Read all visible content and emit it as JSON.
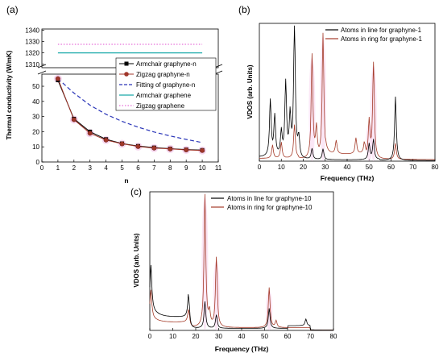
{
  "colors": {
    "armchair": "#000000",
    "zigzag": "#a0362a",
    "fit": "#2a35b8",
    "armchair_graphene": "#1aa9a9",
    "zigzag_graphene": "#e14bcf",
    "line_series": "#000000",
    "ring_series": "#a53c2a"
  },
  "chart_data": [
    {
      "panel": "(a)",
      "type": "line",
      "xlabel": "n",
      "ylabel": "Thermal conductivity (W/mK)",
      "xlim": [
        0,
        11
      ],
      "x_ticks": [
        "0",
        "1",
        "2",
        "3",
        "4",
        "5",
        "6",
        "7",
        "8",
        "9",
        "10",
        "11"
      ],
      "lower_ylim": [
        0,
        58
      ],
      "lower_y_ticks": [
        "0",
        "10",
        "20",
        "30",
        "40",
        "50"
      ],
      "upper_ylim": [
        1307,
        1341
      ],
      "upper_y_ticks": [
        "1310",
        "1320",
        "1330",
        "1340"
      ],
      "x": [
        1,
        2,
        3,
        4,
        5,
        6,
        7,
        8,
        9,
        10
      ],
      "series": [
        {
          "name": "Armchair graphyne-n",
          "values": [
            54,
            28.5,
            20,
            15,
            12.2,
            10.5,
            9.5,
            8.8,
            8.2,
            7.8
          ]
        },
        {
          "name": "Zigzag graphyne-n",
          "values": [
            55,
            28,
            19,
            14.5,
            12,
            10.2,
            9.2,
            8.6,
            8.0,
            7.6
          ]
        },
        {
          "name": "Fitting of graphyne-n",
          "values": [
            55,
            45.5,
            37.5,
            31.5,
            26.8,
            23,
            19.8,
            17.2,
            14.9,
            12.8
          ]
        },
        {
          "name": "Armchair graphene",
          "constant": 1320
        },
        {
          "name": "Zigzag graphene",
          "constant": 1327.5
        }
      ],
      "legend": "right"
    },
    {
      "panel": "(b)",
      "type": "line",
      "xlabel": "Frequency (THz)",
      "ylabel": "VDOS (arb. Units)",
      "xlim": [
        0,
        80
      ],
      "x_ticks": [
        "0",
        "10",
        "20",
        "30",
        "40",
        "50",
        "60",
        "70",
        "80"
      ],
      "series": [
        {
          "name": "Atoms in line for graphyne-1",
          "peaks": [
            [
              5,
              0.42
            ],
            [
              7,
              0.3
            ],
            [
              10,
              0.18
            ],
            [
              12,
              0.55
            ],
            [
              14,
              0.3
            ],
            [
              16,
              1.0
            ],
            [
              18,
              0.15
            ],
            [
              24,
              0.08
            ],
            [
              29,
              0.08
            ],
            [
              50,
              0.12
            ],
            [
              52,
              0.15
            ],
            [
              62,
              0.48
            ]
          ]
        },
        {
          "name": "Atoms in ring for graphyne-1",
          "peaks": [
            [
              6,
              0.1
            ],
            [
              10,
              0.12
            ],
            [
              16,
              0.25
            ],
            [
              24,
              0.78
            ],
            [
              26,
              0.22
            ],
            [
              29,
              0.94
            ],
            [
              35,
              0.1
            ],
            [
              44,
              0.12
            ],
            [
              48,
              0.1
            ],
            [
              50,
              0.28
            ],
            [
              52,
              0.72
            ],
            [
              62,
              0.12
            ]
          ]
        }
      ],
      "legend": "top-right"
    },
    {
      "panel": "(c)",
      "type": "line",
      "xlabel": "Frequency (THz)",
      "ylabel": "VDOS (arb. Units)",
      "xlim": [
        0,
        80
      ],
      "x_ticks": [
        "0",
        "10",
        "20",
        "30",
        "40",
        "50",
        "60",
        "70",
        "80"
      ],
      "series": [
        {
          "name": "Atoms in line for graphyne-10",
          "peaks": [
            [
              0.5,
              0.32
            ],
            [
              17,
              0.22
            ],
            [
              24,
              0.2
            ],
            [
              29,
              0.1
            ],
            [
              52,
              0.15
            ],
            [
              68,
              0.05
            ]
          ]
        },
        {
          "name": "Atoms in ring for graphyne-10",
          "peaks": [
            [
              0.5,
              0.2
            ],
            [
              17,
              0.12
            ],
            [
              24,
              1.0
            ],
            [
              26,
              0.1
            ],
            [
              29,
              0.52
            ],
            [
              52,
              0.3
            ],
            [
              55,
              0.05
            ]
          ]
        }
      ],
      "legend": "top-left"
    }
  ]
}
